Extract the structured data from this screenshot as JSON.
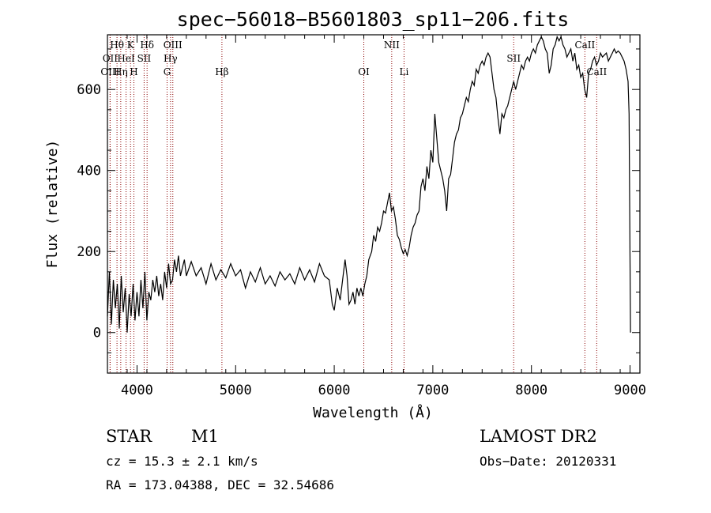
{
  "chart_data": {
    "type": "line",
    "title": "spec−56018−B5601803_sp11−206.fits",
    "xlabel": "Wavelength (Å)",
    "ylabel": "Flux (relative)",
    "xlim": [
      3700,
      9100
    ],
    "ylim": [
      -100,
      735
    ],
    "xticks": [
      4000,
      5000,
      6000,
      7000,
      8000,
      9000
    ],
    "yticks": [
      0,
      200,
      400,
      600
    ],
    "grid": false,
    "series": [
      {
        "points": [
          [
            3700,
            40
          ],
          [
            3720,
            150
          ],
          [
            3740,
            20
          ],
          [
            3760,
            130
          ],
          [
            3780,
            60
          ],
          [
            3800,
            120
          ],
          [
            3820,
            10
          ],
          [
            3840,
            140
          ],
          [
            3860,
            50
          ],
          [
            3880,
            110
          ],
          [
            3900,
            0
          ],
          [
            3920,
            95
          ],
          [
            3940,
            40
          ],
          [
            3960,
            120
          ],
          [
            3980,
            30
          ],
          [
            4000,
            100
          ],
          [
            4020,
            40
          ],
          [
            4040,
            130
          ],
          [
            4060,
            60
          ],
          [
            4080,
            150
          ],
          [
            4100,
            30
          ],
          [
            4120,
            100
          ],
          [
            4140,
            80
          ],
          [
            4160,
            130
          ],
          [
            4180,
            100
          ],
          [
            4200,
            140
          ],
          [
            4220,
            90
          ],
          [
            4240,
            120
          ],
          [
            4260,
            80
          ],
          [
            4280,
            150
          ],
          [
            4300,
            110
          ],
          [
            4320,
            170
          ],
          [
            4340,
            120
          ],
          [
            4360,
            130
          ],
          [
            4380,
            180
          ],
          [
            4400,
            150
          ],
          [
            4420,
            190
          ],
          [
            4440,
            140
          ],
          [
            4460,
            160
          ],
          [
            4480,
            180
          ],
          [
            4500,
            140
          ],
          [
            4550,
            175
          ],
          [
            4600,
            140
          ],
          [
            4650,
            160
          ],
          [
            4700,
            120
          ],
          [
            4750,
            170
          ],
          [
            4800,
            130
          ],
          [
            4850,
            155
          ],
          [
            4900,
            135
          ],
          [
            4950,
            170
          ],
          [
            5000,
            140
          ],
          [
            5050,
            155
          ],
          [
            5100,
            110
          ],
          [
            5150,
            150
          ],
          [
            5200,
            125
          ],
          [
            5250,
            160
          ],
          [
            5300,
            120
          ],
          [
            5350,
            140
          ],
          [
            5400,
            115
          ],
          [
            5450,
            150
          ],
          [
            5500,
            130
          ],
          [
            5550,
            145
          ],
          [
            5600,
            120
          ],
          [
            5650,
            160
          ],
          [
            5700,
            130
          ],
          [
            5750,
            155
          ],
          [
            5800,
            125
          ],
          [
            5850,
            170
          ],
          [
            5900,
            140
          ],
          [
            5950,
            130
          ],
          [
            5980,
            70
          ],
          [
            6000,
            55
          ],
          [
            6030,
            110
          ],
          [
            6060,
            80
          ],
          [
            6090,
            140
          ],
          [
            6110,
            180
          ],
          [
            6130,
            140
          ],
          [
            6150,
            70
          ],
          [
            6170,
            80
          ],
          [
            6190,
            100
          ],
          [
            6210,
            70
          ],
          [
            6230,
            110
          ],
          [
            6250,
            90
          ],
          [
            6270,
            110
          ],
          [
            6290,
            90
          ],
          [
            6310,
            120
          ],
          [
            6330,
            140
          ],
          [
            6350,
            180
          ],
          [
            6380,
            200
          ],
          [
            6400,
            240
          ],
          [
            6420,
            225
          ],
          [
            6440,
            260
          ],
          [
            6460,
            250
          ],
          [
            6480,
            270
          ],
          [
            6500,
            300
          ],
          [
            6520,
            295
          ],
          [
            6540,
            320
          ],
          [
            6560,
            345
          ],
          [
            6580,
            300
          ],
          [
            6600,
            310
          ],
          [
            6620,
            280
          ],
          [
            6640,
            240
          ],
          [
            6660,
            230
          ],
          [
            6680,
            210
          ],
          [
            6700,
            195
          ],
          [
            6720,
            205
          ],
          [
            6740,
            190
          ],
          [
            6760,
            210
          ],
          [
            6780,
            240
          ],
          [
            6800,
            260
          ],
          [
            6820,
            270
          ],
          [
            6840,
            290
          ],
          [
            6860,
            300
          ],
          [
            6880,
            360
          ],
          [
            6900,
            380
          ],
          [
            6920,
            350
          ],
          [
            6940,
            410
          ],
          [
            6960,
            380
          ],
          [
            6980,
            450
          ],
          [
            7000,
            420
          ],
          [
            7020,
            540
          ],
          [
            7040,
            480
          ],
          [
            7060,
            420
          ],
          [
            7080,
            400
          ],
          [
            7100,
            380
          ],
          [
            7120,
            350
          ],
          [
            7140,
            300
          ],
          [
            7160,
            380
          ],
          [
            7180,
            390
          ],
          [
            7200,
            430
          ],
          [
            7220,
            470
          ],
          [
            7240,
            490
          ],
          [
            7260,
            500
          ],
          [
            7280,
            530
          ],
          [
            7300,
            540
          ],
          [
            7320,
            560
          ],
          [
            7340,
            580
          ],
          [
            7360,
            570
          ],
          [
            7380,
            600
          ],
          [
            7400,
            620
          ],
          [
            7420,
            610
          ],
          [
            7440,
            650
          ],
          [
            7460,
            640
          ],
          [
            7480,
            660
          ],
          [
            7500,
            670
          ],
          [
            7520,
            660
          ],
          [
            7540,
            680
          ],
          [
            7560,
            690
          ],
          [
            7580,
            680
          ],
          [
            7600,
            640
          ],
          [
            7620,
            600
          ],
          [
            7640,
            580
          ],
          [
            7660,
            530
          ],
          [
            7680,
            490
          ],
          [
            7700,
            540
          ],
          [
            7720,
            530
          ],
          [
            7740,
            550
          ],
          [
            7760,
            560
          ],
          [
            7780,
            580
          ],
          [
            7800,
            600
          ],
          [
            7820,
            620
          ],
          [
            7840,
            600
          ],
          [
            7860,
            620
          ],
          [
            7880,
            640
          ],
          [
            7900,
            660
          ],
          [
            7920,
            650
          ],
          [
            7940,
            670
          ],
          [
            7960,
            680
          ],
          [
            7980,
            670
          ],
          [
            8000,
            690
          ],
          [
            8020,
            700
          ],
          [
            8040,
            690
          ],
          [
            8060,
            710
          ],
          [
            8080,
            720
          ],
          [
            8100,
            730
          ],
          [
            8120,
            720
          ],
          [
            8140,
            700
          ],
          [
            8160,
            690
          ],
          [
            8180,
            640
          ],
          [
            8200,
            660
          ],
          [
            8220,
            700
          ],
          [
            8240,
            710
          ],
          [
            8260,
            730
          ],
          [
            8280,
            720
          ],
          [
            8300,
            730
          ],
          [
            8320,
            710
          ],
          [
            8340,
            700
          ],
          [
            8360,
            680
          ],
          [
            8380,
            690
          ],
          [
            8400,
            700
          ],
          [
            8420,
            670
          ],
          [
            8440,
            690
          ],
          [
            8460,
            650
          ],
          [
            8480,
            660
          ],
          [
            8500,
            630
          ],
          [
            8520,
            640
          ],
          [
            8540,
            600
          ],
          [
            8560,
            580
          ],
          [
            8580,
            640
          ],
          [
            8600,
            650
          ],
          [
            8620,
            670
          ],
          [
            8640,
            680
          ],
          [
            8660,
            660
          ],
          [
            8680,
            670
          ],
          [
            8700,
            690
          ],
          [
            8720,
            680
          ],
          [
            8740,
            685
          ],
          [
            8760,
            690
          ],
          [
            8780,
            670
          ],
          [
            8800,
            680
          ],
          [
            8820,
            690
          ],
          [
            8840,
            700
          ],
          [
            8860,
            690
          ],
          [
            8880,
            695
          ],
          [
            8900,
            690
          ],
          [
            8920,
            680
          ],
          [
            8940,
            670
          ],
          [
            8960,
            650
          ],
          [
            8980,
            620
          ],
          [
            8990,
            540
          ],
          [
            9000,
            180
          ],
          [
            9005,
            0
          ]
        ]
      }
    ],
    "spectral_lines": [
      {
        "label": "Hθ",
        "x": 3797,
        "row": 0
      },
      {
        "label": "K",
        "x": 3934,
        "row": 0
      },
      {
        "label": "Hδ",
        "x": 4102,
        "row": 0
      },
      {
        "label": "OIII",
        "x": 4363,
        "row": 0
      },
      {
        "label": "NII",
        "x": 6583,
        "row": 0
      },
      {
        "label": "CaII",
        "x": 8542,
        "row": 0
      },
      {
        "label": "OII",
        "x": 3727,
        "row": 1
      },
      {
        "label": "HeI",
        "x": 3889,
        "row": 1
      },
      {
        "label": "SII",
        "x": 4072,
        "row": 1
      },
      {
        "label": "Hγ",
        "x": 4340,
        "row": 1
      },
      {
        "label": "OI",
        "x": 6300,
        "row": 2
      },
      {
        "label": "SII",
        "x": 7820,
        "row": 1
      },
      {
        "label": "OIII",
        "x": 3727,
        "row": 2
      },
      {
        "label": "Hη",
        "x": 3835,
        "row": 2
      },
      {
        "label": "H",
        "x": 3968,
        "row": 2
      },
      {
        "label": "G",
        "x": 4305,
        "row": 2
      },
      {
        "label": "Hβ",
        "x": 4861,
        "row": 2
      },
      {
        "label": "Li",
        "x": 6708,
        "row": 2
      },
      {
        "label": "CaII",
        "x": 8662,
        "row": 2
      }
    ]
  },
  "footer": {
    "object_class": "STAR",
    "subclass": "M1",
    "survey": "LAMOST DR2",
    "cz": "cz = 15.3 ± 2.1 km/s",
    "obs_date": "Obs−Date: 20120331",
    "coords": "RA = 173.04388, DEC =  32.54686"
  },
  "colors": {
    "spectrum": "#000000",
    "line_markers": "#8b0000",
    "background": "#ffffff"
  }
}
